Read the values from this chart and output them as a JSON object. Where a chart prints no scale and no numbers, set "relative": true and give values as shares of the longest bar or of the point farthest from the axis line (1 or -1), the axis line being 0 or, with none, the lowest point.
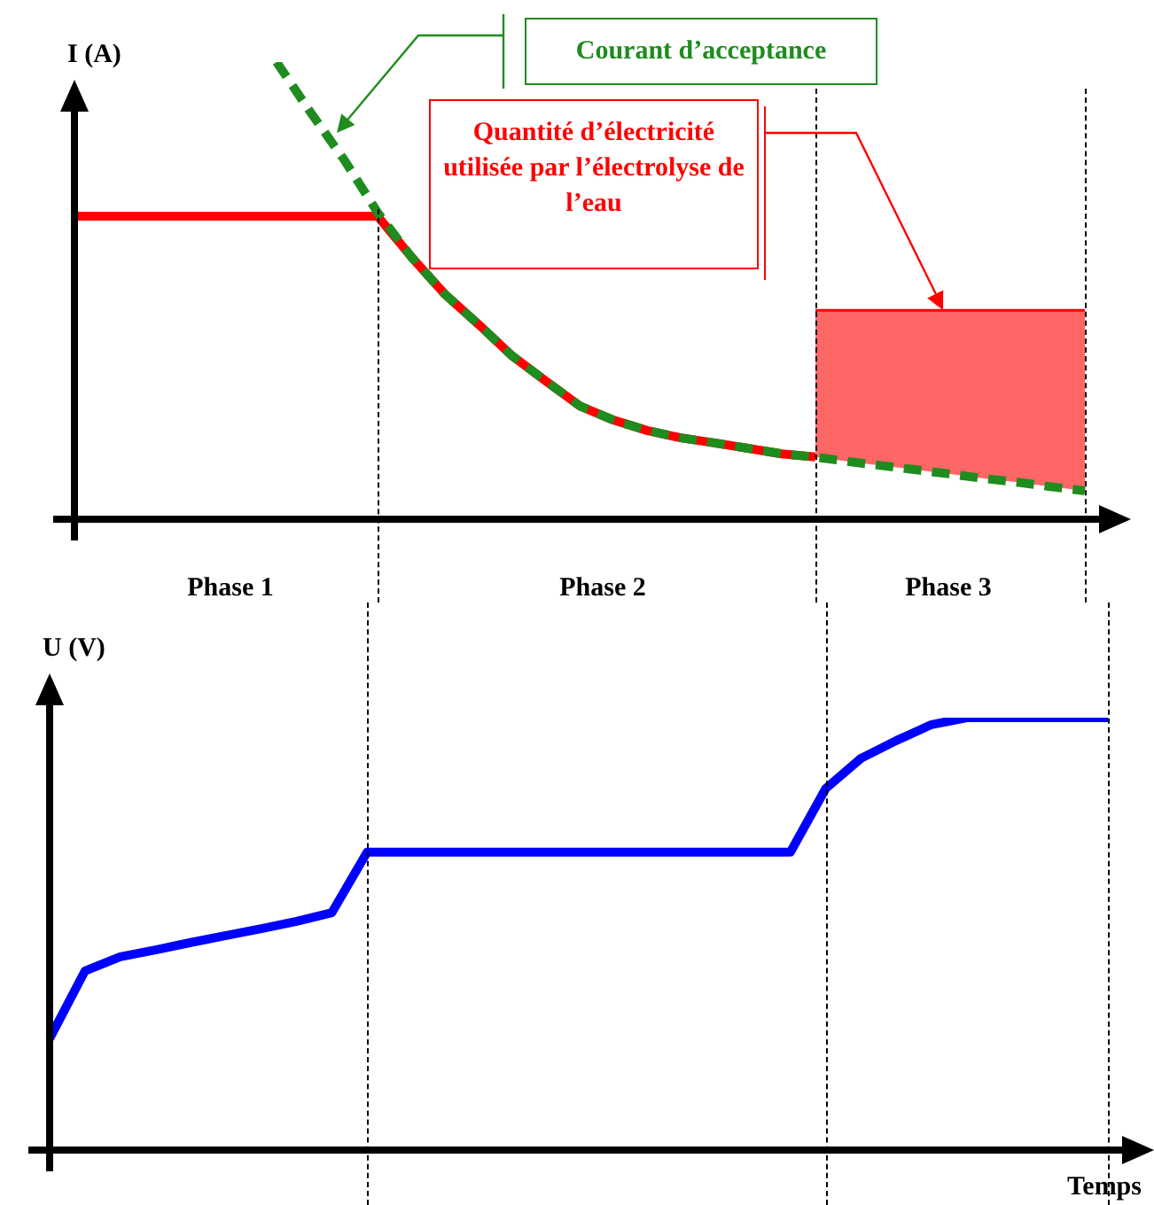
{
  "chart_data": [
    {
      "type": "line",
      "ylabel": "I (A)",
      "relative": true,
      "grid": "x",
      "categories": [
        null,
        null,
        null,
        null,
        null,
        null,
        null,
        null,
        null,
        null,
        null,
        null,
        null,
        null,
        null,
        null,
        null,
        null,
        null,
        null,
        null,
        null,
        null,
        null,
        null,
        null,
        null,
        null,
        null,
        null,
        null
      ],
      "series": [
        {
          "color": "#ff0000",
          "values": [
            0.663,
            0.663,
            0.663,
            0.663,
            0.663,
            0.663,
            0.663,
            0.663,
            0.663,
            0.663,
            0.574,
            0.492,
            0.426,
            0.357,
            0.302,
            0.248,
            0.217,
            0.194,
            0.178,
            0.167,
            0.155,
            0.143,
            0.136,
            null,
            null,
            null,
            null,
            null,
            null,
            null,
            null
          ]
        },
        {
          "type": "area",
          "color": "#ff6666",
          "values": [
            null,
            null,
            null,
            null,
            null,
            null,
            null,
            null,
            null,
            null,
            null,
            null,
            null,
            null,
            null,
            null,
            null,
            null,
            null,
            null,
            null,
            null,
            0.457,
            0.457,
            0.457,
            0.457,
            0.457,
            0.457,
            0.457,
            0.457,
            0.457
          ]
        },
        {
          "color": "#1e8c1e",
          "line_style": "dashed",
          "values": [
            null,
            null,
            null,
            null,
            null,
            null,
            1.0,
            0.891,
            0.787,
            0.671,
            0.574,
            0.492,
            0.426,
            0.357,
            0.302,
            0.248,
            0.217,
            0.194,
            0.178,
            0.167,
            0.155,
            0.143,
            0.136,
            0.126,
            0.117,
            0.108,
            0.099,
            0.089,
            0.081,
            0.071,
            0.062
          ]
        }
      ],
      "annotations": [
        "Courant d’acceptance",
        "Quantité d’électricité utilisée par l’électrolyse de l’eau",
        "Phase 1",
        "Phase 2",
        "Phase 3"
      ]
    },
    {
      "type": "line",
      "ylabel": "U (V)",
      "xlabel": "Temps",
      "relative": true,
      "grid": "x",
      "categories": [
        null,
        null,
        null,
        null,
        null,
        null,
        null,
        null,
        null,
        null,
        null,
        null,
        null,
        null,
        null,
        null,
        null,
        null,
        null,
        null,
        null,
        null,
        null,
        null,
        null,
        null,
        null,
        null,
        null,
        null,
        null
      ],
      "series": [
        {
          "color": "#0000ff",
          "values": [
            0.258,
            0.414,
            0.447,
            0.463,
            0.48,
            0.496,
            0.512,
            0.529,
            0.549,
            0.689,
            0.689,
            0.689,
            0.689,
            0.689,
            0.689,
            0.689,
            0.689,
            0.689,
            0.689,
            0.689,
            0.689,
            0.689,
            0.836,
            0.906,
            0.947,
            0.984,
            1.0,
            1.0,
            1.0,
            1.0,
            1.0
          ]
        }
      ]
    }
  ]
}
